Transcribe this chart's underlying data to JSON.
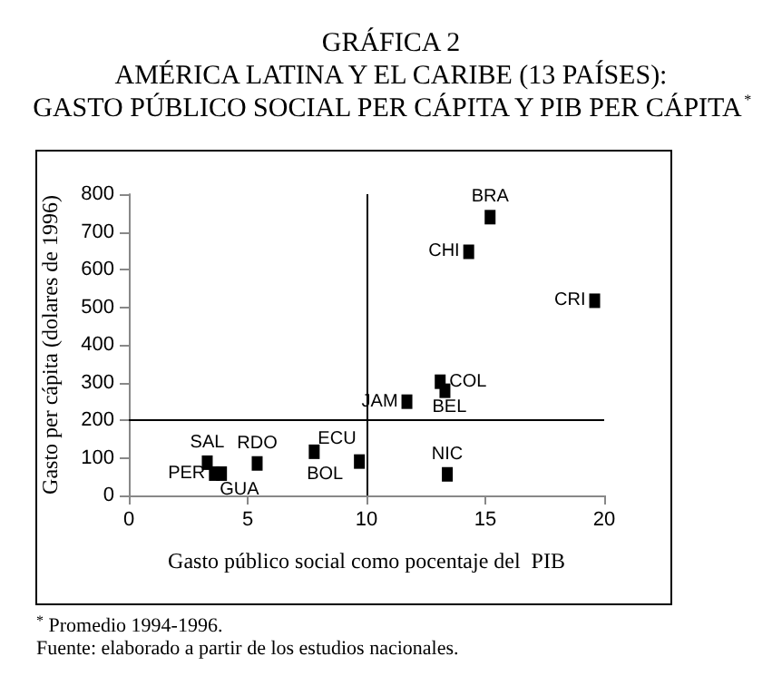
{
  "chart_data": {
    "type": "scatter",
    "title": "GRÁFICA 2\nAMÉRICA LATINA Y EL CARIBE (13 PAÍSES):\nGASTO PÚBLICO SOCIAL PER CÁPITA Y PIB PER CÁPITA$^{*}$",
    "xlabel": "Gasto público social como pocentaje del  PIB",
    "ylabel": "Gasto per cápita (dolares de 1996)",
    "series": [
      {
        "name": "BRA",
        "color": "#000000",
        "x": [
          15.2
        ],
        "values": [
          739
        ]
      },
      {
        "name": "CHI",
        "color": "#000000",
        "x": [
          14.3
        ],
        "values": [
          647
        ]
      },
      {
        "name": "CRI",
        "color": "#000000",
        "x": [
          19.6
        ],
        "values": [
          517
        ]
      },
      {
        "name": "COL",
        "color": "#000000",
        "x": [
          13.1
        ],
        "values": [
          302
        ]
      },
      {
        "name": "BEL",
        "color": "#000000",
        "x": [
          13.3
        ],
        "values": [
          278
        ]
      },
      {
        "name": "JAM",
        "color": "#000000",
        "x": [
          11.7
        ],
        "values": [
          249
        ]
      },
      {
        "name": "NIC",
        "color": "#000000",
        "x": [
          13.4
        ],
        "values": [
          56
        ]
      },
      {
        "name": "BOL",
        "color": "#000000",
        "x": [
          9.7
        ],
        "values": [
          90
        ]
      },
      {
        "name": "ECU",
        "color": "#000000",
        "x": [
          7.8
        ],
        "values": [
          116
        ]
      },
      {
        "name": "RDO",
        "color": "#000000",
        "x": [
          5.4
        ],
        "values": [
          85
        ]
      },
      {
        "name": "SAL",
        "color": "#000000",
        "x": [
          3.3
        ],
        "values": [
          87
        ]
      },
      {
        "name": "PER",
        "color": "#000000",
        "x": [
          3.6
        ],
        "values": [
          58
        ]
      },
      {
        "name": "GUA",
        "color": "#000000",
        "x": [
          3.9
        ],
        "values": [
          58
        ]
      }
    ],
    "xlim": [
      0,
      20
    ],
    "xticks": [
      0,
      5,
      10,
      15,
      20
    ],
    "ylim": [
      0,
      800
    ],
    "yticks": [
      0,
      100,
      200,
      300,
      400,
      500,
      600,
      700,
      800
    ],
    "ref_lines": [
      {
        "axis": "x",
        "value": 10,
        "color": "#000000"
      },
      {
        "axis": "y",
        "value": 200,
        "color": "#000000"
      }
    ],
    "grid": false,
    "legend": false,
    "marker": "square",
    "annotations": [
      "$^{*}$ Promedio 1994-1996.",
      "Fuente: elaborado a partir de los estudios nacionales."
    ]
  }
}
